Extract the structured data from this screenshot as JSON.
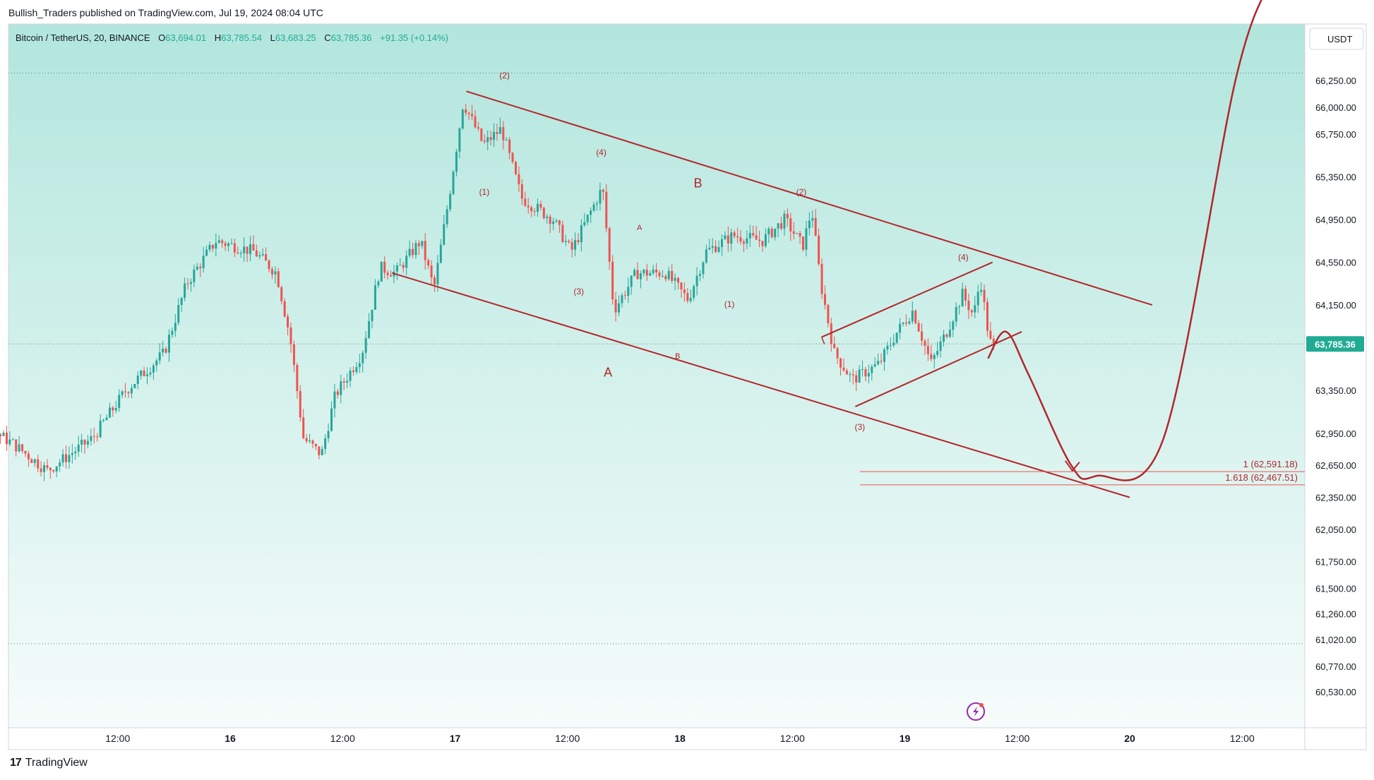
{
  "header": {
    "published": "Bullish_Traders published on TradingView.com, Jul 19, 2024 08:04 UTC"
  },
  "legend": {
    "symbol": "Bitcoin / TetherUS, 20, BINANCE",
    "o_label": "O",
    "o_value": "63,694.01",
    "h_label": "H",
    "h_value": "63,785.54",
    "l_label": "L",
    "l_value": "63,683.25",
    "c_label": "C",
    "c_value": "63,785.36",
    "change": "+91.35 (+0.14%)"
  },
  "currency_button": "USDT",
  "footer": {
    "brand": "TradingView",
    "brand_mark": "17"
  },
  "colors": {
    "up": "#26a69a",
    "down": "#ef5350",
    "annotation": "#b2262b",
    "price_badge": "#22ab94",
    "bg_top": "#b2e6dd",
    "bg_bottom": "#f6fcfb"
  },
  "icons": {
    "lightning": "lightning-icon",
    "currency": "currency-selector"
  },
  "chart_data": {
    "type": "candlestick",
    "symbol": "BTCUSDT",
    "interval_minutes": 20,
    "last_price": 63785.36,
    "last_price_label": "63,785.36",
    "y_axis": {
      "ticks": [
        {
          "value": 66250,
          "label": "66,250.00"
        },
        {
          "value": 66000,
          "label": "66,000.00"
        },
        {
          "value": 65750,
          "label": "65,750.00"
        },
        {
          "value": 65350,
          "label": "65,350.00"
        },
        {
          "value": 64950,
          "label": "64,950.00"
        },
        {
          "value": 64550,
          "label": "64,550.00"
        },
        {
          "value": 64150,
          "label": "64,150.00"
        },
        {
          "value": 63350,
          "label": "63,350.00"
        },
        {
          "value": 62950,
          "label": "62,950.00"
        },
        {
          "value": 62650,
          "label": "62,650.00"
        },
        {
          "value": 62350,
          "label": "62,350.00"
        },
        {
          "value": 62050,
          "label": "62,050.00"
        },
        {
          "value": 61750,
          "label": "61,750.00"
        },
        {
          "value": 61500,
          "label": "61,500.00"
        },
        {
          "value": 61260,
          "label": "61,260.00"
        },
        {
          "value": 61020,
          "label": "61,020.00"
        },
        {
          "value": 60770,
          "label": "60,770.00"
        },
        {
          "value": 60530,
          "label": "60,530.00"
        }
      ]
    },
    "x_axis": {
      "ticks": [
        {
          "t": 0.5,
          "label": "12:00"
        },
        {
          "t": 1.0,
          "label": "16"
        },
        {
          "t": 1.5,
          "label": "12:00"
        },
        {
          "t": 2.0,
          "label": "17"
        },
        {
          "t": 2.5,
          "label": "12:00"
        },
        {
          "t": 3.0,
          "label": "18"
        },
        {
          "t": 3.5,
          "label": "12:00"
        },
        {
          "t": 4.0,
          "label": "19"
        },
        {
          "t": 4.5,
          "label": "12:00"
        },
        {
          "t": 5.0,
          "label": "20"
        },
        {
          "t": 5.5,
          "label": "12:00"
        }
      ]
    },
    "anchors": [
      [
        -0.48,
        61050
      ],
      [
        -0.44,
        61750
      ],
      [
        -0.38,
        62500
      ],
      [
        -0.25,
        62950
      ],
      [
        -0.1,
        63050
      ],
      [
        0.05,
        62850
      ],
      [
        0.2,
        62600
      ],
      [
        0.4,
        62900
      ],
      [
        0.55,
        63350
      ],
      [
        0.72,
        63700
      ],
      [
        0.82,
        64350
      ],
      [
        0.95,
        64750
      ],
      [
        1.12,
        64650
      ],
      [
        1.22,
        64450
      ],
      [
        1.28,
        63850
      ],
      [
        1.34,
        62900
      ],
      [
        1.42,
        62750
      ],
      [
        1.48,
        63300
      ],
      [
        1.6,
        63700
      ],
      [
        1.68,
        64500
      ],
      [
        1.75,
        64450
      ],
      [
        1.86,
        64750
      ],
      [
        1.92,
        64300
      ],
      [
        1.99,
        65200
      ],
      [
        2.05,
        66050
      ],
      [
        2.14,
        65650
      ],
      [
        2.22,
        65800
      ],
      [
        2.31,
        65150
      ],
      [
        2.45,
        64950
      ],
      [
        2.53,
        64650
      ],
      [
        2.6,
        64950
      ],
      [
        2.67,
        65250
      ],
      [
        2.72,
        64100
      ],
      [
        2.82,
        64450
      ],
      [
        2.95,
        64450
      ],
      [
        3.05,
        64200
      ],
      [
        3.13,
        64650
      ],
      [
        3.25,
        64800
      ],
      [
        3.38,
        64750
      ],
      [
        3.48,
        64950
      ],
      [
        3.56,
        64700
      ],
      [
        3.6,
        65050
      ],
      [
        3.64,
        64350
      ],
      [
        3.7,
        63700
      ],
      [
        3.78,
        63450
      ],
      [
        3.9,
        63600
      ],
      [
        3.98,
        63900
      ],
      [
        4.05,
        64100
      ],
      [
        4.13,
        63600
      ],
      [
        4.2,
        63900
      ],
      [
        4.27,
        64250
      ],
      [
        4.32,
        64050
      ],
      [
        4.35,
        64400
      ],
      [
        4.38,
        63950
      ],
      [
        4.4,
        63750
      ]
    ],
    "channel_upper": {
      "from": [
        2.05,
        66150
      ],
      "to": [
        5.1,
        64150
      ]
    },
    "channel_lower": {
      "from": [
        1.72,
        64450
      ],
      "to": [
        5.0,
        62350
      ]
    },
    "wedge_upper": {
      "from": [
        3.63,
        63850
      ],
      "to": [
        4.39,
        64550
      ]
    },
    "wedge_lower": {
      "from": [
        3.78,
        63200
      ],
      "to": [
        4.52,
        63900
      ]
    },
    "projection": [
      [
        4.37,
        63650
      ],
      [
        4.45,
        63900
      ],
      [
        4.55,
        63500
      ],
      [
        4.74,
        62650
      ],
      [
        4.85,
        62550
      ],
      [
        5.15,
        62900
      ],
      [
        5.47,
        66250
      ],
      [
        5.63,
        67200
      ]
    ],
    "fib_levels": [
      {
        "value": 62591.18,
        "label": "1 (62,591.18)"
      },
      {
        "value": 62467.51,
        "label": "1.618 (62,467.51)"
      }
    ],
    "fib_x_range": [
      3.8,
      5.0
    ],
    "dotted_levels": [
      66320,
      60980
    ],
    "wave_labels": [
      {
        "t": 2.22,
        "price": 66270,
        "text": "(2)",
        "size": 12
      },
      {
        "t": 2.13,
        "price": 65180,
        "text": "(1)",
        "size": 12
      },
      {
        "t": 2.65,
        "price": 65550,
        "text": "(4)",
        "size": 12
      },
      {
        "t": 2.55,
        "price": 64250,
        "text": "(3)",
        "size": 12
      },
      {
        "t": 2.68,
        "price": 63480,
        "text": "A",
        "size": 18
      },
      {
        "t": 3.08,
        "price": 65250,
        "text": "B",
        "size": 18
      },
      {
        "t": 2.82,
        "price": 64850,
        "text": "A",
        "size": 11
      },
      {
        "t": 2.99,
        "price": 63650,
        "text": "B",
        "size": 11
      },
      {
        "t": 3.22,
        "price": 64130,
        "text": "(1)",
        "size": 12
      },
      {
        "t": 3.54,
        "price": 65180,
        "text": "(2)",
        "size": 12
      },
      {
        "t": 3.8,
        "price": 62980,
        "text": "(3)",
        "size": 12
      },
      {
        "t": 4.26,
        "price": 64570,
        "text": "(4)",
        "size": 12
      }
    ]
  }
}
